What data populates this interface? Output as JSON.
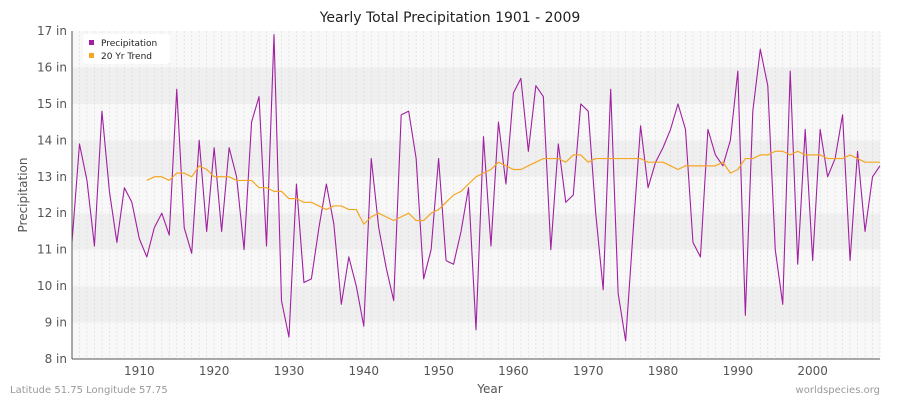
{
  "chart_data": {
    "type": "line",
    "title": "Yearly Total Precipitation 1901 - 2009",
    "xlabel": "Year",
    "ylabel": "Precipitation",
    "xlim": [
      1901,
      2009
    ],
    "ylim": [
      8,
      17
    ],
    "x_ticks": [
      1910,
      1920,
      1930,
      1940,
      1950,
      1960,
      1970,
      1980,
      1990,
      2000
    ],
    "y_ticks": [
      {
        "value": 8,
        "label": "8 in"
      },
      {
        "value": 9,
        "label": "9 in"
      },
      {
        "value": 10,
        "label": "10 in"
      },
      {
        "value": 11,
        "label": "11 in"
      },
      {
        "value": 12,
        "label": "12 in"
      },
      {
        "value": 13,
        "label": "13 in"
      },
      {
        "value": 14,
        "label": "14 in"
      },
      {
        "value": 15,
        "label": "15 in"
      },
      {
        "value": 16,
        "label": "16 in"
      },
      {
        "value": 17,
        "label": "17 in"
      }
    ],
    "legend_position": "top-left",
    "series": [
      {
        "name": "Precipitation",
        "color": "#a020a0",
        "start_year": 1901,
        "values": [
          11.2,
          13.9,
          12.9,
          11.1,
          14.8,
          12.6,
          11.2,
          12.7,
          12.3,
          11.3,
          10.8,
          11.6,
          12.0,
          11.4,
          15.4,
          11.6,
          10.9,
          14.0,
          11.5,
          13.8,
          11.5,
          13.8,
          13.0,
          11.0,
          14.5,
          15.2,
          11.1,
          16.9,
          9.6,
          8.6,
          12.8,
          10.1,
          10.2,
          11.6,
          12.8,
          11.7,
          9.5,
          10.8,
          10.0,
          8.9,
          13.5,
          11.6,
          10.5,
          9.6,
          14.7,
          14.8,
          13.5,
          10.2,
          11.0,
          13.5,
          10.7,
          10.6,
          11.5,
          12.7,
          8.8,
          14.1,
          11.1,
          14.5,
          12.8,
          15.3,
          15.7,
          13.7,
          15.5,
          15.2,
          11.0,
          13.9,
          12.3,
          12.5,
          15.0,
          14.8,
          12.0,
          9.9,
          15.4,
          9.8,
          8.5,
          11.5,
          14.4,
          12.7,
          13.4,
          13.8,
          14.3,
          15.0,
          14.3,
          11.2,
          10.8,
          14.3,
          13.6,
          13.3,
          14.0,
          15.9,
          9.2,
          14.8,
          16.5,
          15.5,
          11.0,
          9.5,
          15.9,
          10.6,
          14.3,
          10.7,
          14.3,
          13.0,
          13.5,
          14.7,
          10.7,
          13.7,
          11.5,
          13.0,
          13.3
        ]
      },
      {
        "name": "20 Yr Trend",
        "color": "#f5a623",
        "start_year": 1911,
        "values": [
          12.9,
          13.0,
          13.0,
          12.9,
          13.1,
          13.1,
          13.0,
          13.3,
          13.2,
          13.0,
          13.0,
          13.0,
          12.9,
          12.9,
          12.9,
          12.7,
          12.7,
          12.6,
          12.6,
          12.4,
          12.4,
          12.3,
          12.3,
          12.2,
          12.1,
          12.2,
          12.2,
          12.1,
          12.1,
          11.7,
          11.9,
          12.0,
          11.9,
          11.8,
          11.9,
          12.0,
          11.8,
          11.8,
          12.0,
          12.1,
          12.3,
          12.5,
          12.6,
          12.8,
          13.0,
          13.1,
          13.2,
          13.4,
          13.3,
          13.2,
          13.2,
          13.3,
          13.4,
          13.5,
          13.5,
          13.5,
          13.4,
          13.6,
          13.6,
          13.4,
          13.5,
          13.5,
          13.5,
          13.5,
          13.5,
          13.5,
          13.5,
          13.4,
          13.4,
          13.4,
          13.3,
          13.2,
          13.3,
          13.3,
          13.3,
          13.3,
          13.3,
          13.4,
          13.1,
          13.2,
          13.5,
          13.5,
          13.6,
          13.6,
          13.7,
          13.7,
          13.6,
          13.7,
          13.6,
          13.6,
          13.6,
          13.5,
          13.5,
          13.5,
          13.6,
          13.5,
          13.4,
          13.4,
          13.4
        ]
      }
    ]
  },
  "footer": {
    "left": "Latitude 51.75 Longitude 57.75",
    "right": "worldspecies.org"
  }
}
